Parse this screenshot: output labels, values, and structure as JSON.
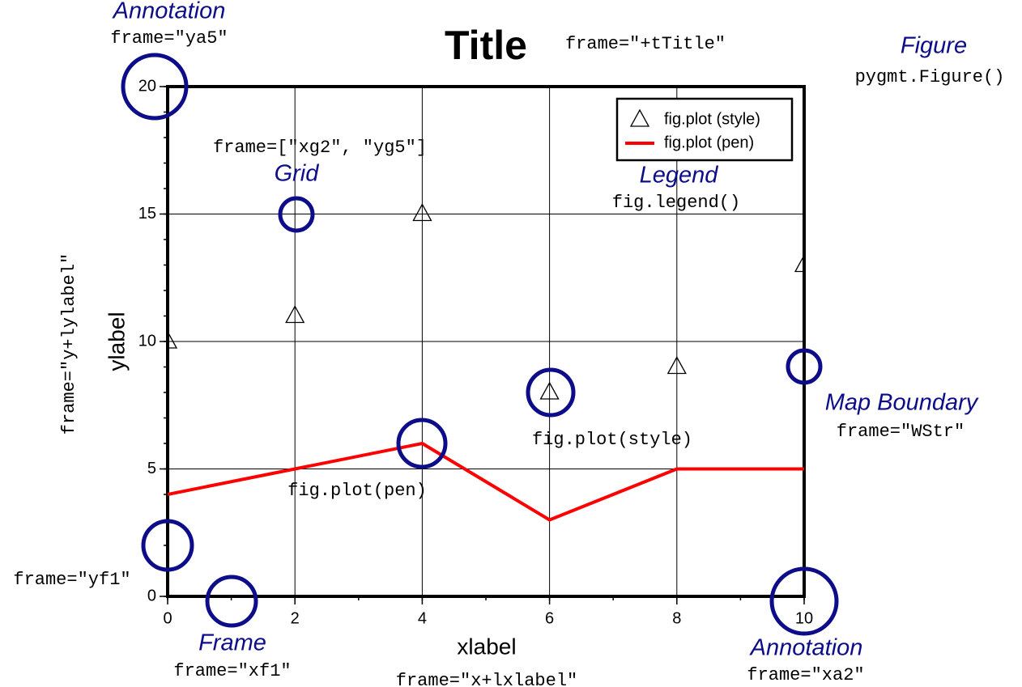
{
  "chart_data": {
    "type": "line",
    "title": "Title",
    "x_label": "xlabel",
    "y_label": "ylabel",
    "x": [
      0,
      2,
      4,
      6,
      8,
      10
    ],
    "series": [
      {
        "name": "fig.plot (style)",
        "color": "#000000",
        "marker": "triangle",
        "values": [
          10,
          11,
          15,
          8,
          9,
          13
        ]
      },
      {
        "name": "fig.plot (pen)",
        "color": "#ff0000",
        "values": [
          4,
          5,
          6,
          3,
          5,
          5
        ]
      }
    ],
    "xlim": [
      0,
      10
    ],
    "ylim": [
      0,
      20
    ],
    "xticks": [
      0,
      2,
      4,
      6,
      8,
      10
    ],
    "yticks": [
      0,
      5,
      10,
      15,
      20
    ],
    "x_minor_step": 1,
    "y_minor_step": 1,
    "grid": true,
    "legend": "top-right",
    "annotations": [
      "Annotation",
      "frame=\"ya5\"",
      "frame=\"+tTitle\"",
      "Figure",
      "pygmt.Figure()",
      "frame=[\"xg2\", \"yg5\"]",
      "Grid",
      "Legend",
      "fig.legend()",
      "frame=\"y+lylabel\"",
      "Map Boundary",
      "frame=\"WStr\"",
      "fig.plot(style)",
      "fig.plot(pen)",
      "frame=\"yf1\"",
      "Frame",
      "frame=\"xf1\"",
      "frame=\"x+lxlabel\"",
      "Annotation",
      "frame=\"xa2\""
    ]
  }
}
